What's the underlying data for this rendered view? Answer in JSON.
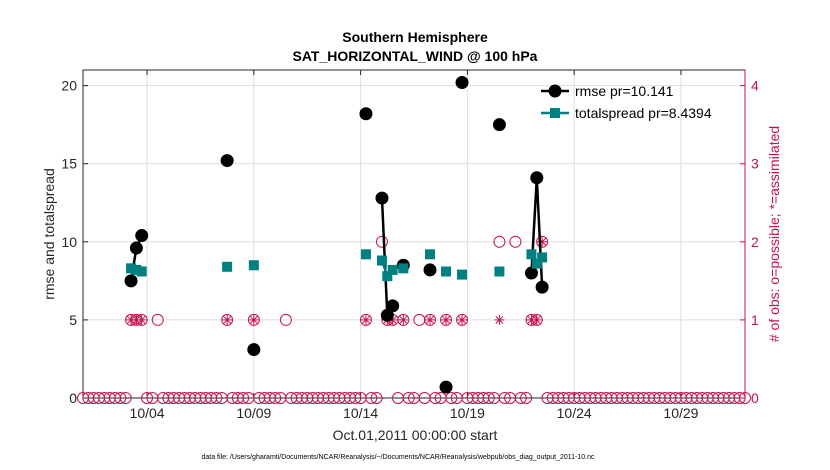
{
  "chart_data": {
    "type": "line",
    "title": "Southern Hemisphere",
    "subtitle": "SAT_HORIZONTAL_WIND @ 100 hPa",
    "xlabel": "Oct.01,2011 00:00:00 start",
    "ylabel": "rmse and totalspread",
    "ylabel_right": "# of obs: o=possible; *=assimilated",
    "footnote": "data file: /Users/gharamti/Documents/NCAR/Reanalysis/~/Documents/NCAR/Reanalysis/webpub/obs_diag_output_2011-10.nc",
    "xlim": [
      1,
      32
    ],
    "ylim": [
      0,
      21
    ],
    "ylim_right": [
      0,
      4.2
    ],
    "x_ticks": [
      {
        "value": 4,
        "label": "10/04"
      },
      {
        "value": 9,
        "label": "10/09"
      },
      {
        "value": 14,
        "label": "10/14"
      },
      {
        "value": 19,
        "label": "10/19"
      },
      {
        "value": 24,
        "label": "10/24"
      },
      {
        "value": 29,
        "label": "10/29"
      }
    ],
    "y_ticks": [
      {
        "value": 0,
        "label": "0"
      },
      {
        "value": 5,
        "label": "5"
      },
      {
        "value": 10,
        "label": "10"
      },
      {
        "value": 15,
        "label": "15"
      },
      {
        "value": 20,
        "label": "20"
      }
    ],
    "y_ticks_right": [
      {
        "value": 0,
        "label": "0"
      },
      {
        "value": 1,
        "label": "1"
      },
      {
        "value": 2,
        "label": "2"
      },
      {
        "value": 3,
        "label": "3"
      },
      {
        "value": 4,
        "label": "4"
      }
    ],
    "grid": true,
    "legend_position": "top-right",
    "colors": {
      "rmse": "#000000",
      "spread": "#008080",
      "obs": "#c8104e",
      "grid": "#dedede",
      "axis": "#262626"
    },
    "series": [
      {
        "name": "rmse pr=10.141",
        "key": "rmse",
        "marker": "circle",
        "points": [
          [
            3.25,
            7.5
          ],
          [
            3.5,
            9.6
          ],
          [
            3.75,
            10.4
          ],
          [
            7.75,
            15.2
          ],
          [
            9.0,
            3.1
          ],
          [
            14.25,
            18.2
          ],
          [
            15.0,
            12.8
          ],
          [
            15.25,
            5.3
          ],
          [
            15.5,
            5.9
          ],
          [
            16.0,
            8.5
          ],
          [
            17.25,
            8.2
          ],
          [
            18.0,
            0.7
          ],
          [
            18.75,
            20.2
          ],
          [
            20.5,
            17.5
          ],
          [
            22.0,
            8.0
          ],
          [
            22.25,
            14.1
          ],
          [
            22.5,
            7.1
          ]
        ],
        "line_segments": [
          [
            0,
            1,
            2
          ],
          [
            6,
            7,
            8
          ],
          [
            14,
            15,
            16
          ]
        ]
      },
      {
        "name": "totalspread pr=8.4394",
        "key": "spread",
        "marker": "square",
        "points": [
          [
            3.25,
            8.3
          ],
          [
            3.5,
            8.2
          ],
          [
            3.75,
            8.1
          ],
          [
            7.75,
            8.4
          ],
          [
            9.0,
            8.5
          ],
          [
            14.25,
            9.2
          ],
          [
            15.0,
            8.8
          ],
          [
            15.25,
            7.8
          ],
          [
            15.5,
            8.2
          ],
          [
            16.0,
            8.3
          ],
          [
            17.25,
            9.2
          ],
          [
            18.0,
            8.1
          ],
          [
            18.75,
            7.9
          ],
          [
            20.5,
            8.1
          ],
          [
            22.0,
            9.2
          ],
          [
            22.25,
            8.6
          ],
          [
            22.5,
            9.0
          ]
        ],
        "line_segments": [
          [
            0,
            1,
            2
          ],
          [
            6,
            7,
            8
          ],
          [
            14,
            15,
            16
          ]
        ]
      }
    ],
    "obs_possible": [
      [
        3.25,
        1
      ],
      [
        3.5,
        1
      ],
      [
        3.75,
        1
      ],
      [
        4.5,
        1
      ],
      [
        7.75,
        1
      ],
      [
        9.0,
        1
      ],
      [
        10.5,
        1
      ],
      [
        14.25,
        1
      ],
      [
        15.0,
        2
      ],
      [
        15.25,
        1
      ],
      [
        15.5,
        1
      ],
      [
        16.0,
        1
      ],
      [
        16.75,
        1
      ],
      [
        17.25,
        1
      ],
      [
        18.0,
        1
      ],
      [
        18.75,
        1
      ],
      [
        20.5,
        2
      ],
      [
        21.25,
        2
      ],
      [
        22.0,
        1
      ],
      [
        22.25,
        1
      ],
      [
        22.5,
        2
      ]
    ],
    "obs_assimilated": [
      [
        3.25,
        1
      ],
      [
        3.5,
        1
      ],
      [
        3.75,
        1
      ],
      [
        7.75,
        1
      ],
      [
        9.0,
        1
      ],
      [
        14.25,
        1
      ],
      [
        15.25,
        1
      ],
      [
        15.5,
        1
      ],
      [
        16.0,
        1
      ],
      [
        17.25,
        1
      ],
      [
        18.0,
        1
      ],
      [
        18.75,
        1
      ],
      [
        20.5,
        1
      ],
      [
        22.0,
        1
      ],
      [
        22.25,
        1
      ],
      [
        22.5,
        2
      ]
    ],
    "obs_zero_x_start": 1,
    "obs_zero_x_end": 32,
    "obs_zero_x_step": 0.25
  }
}
